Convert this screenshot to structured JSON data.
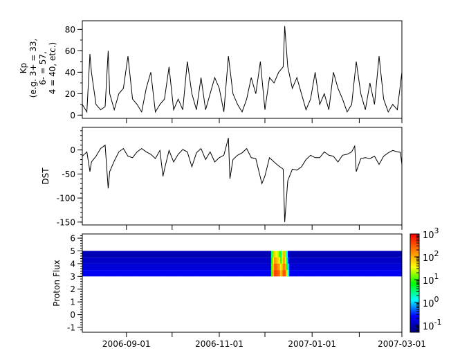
{
  "chart_data": [
    {
      "type": "line",
      "ylabel_lines": [
        "Kp",
        "(e.g. 3+ = 33,",
        "6- = 57,",
        "4 = 40, etc.)"
      ],
      "ylim": [
        -3,
        88
      ],
      "yticks": [
        0,
        20,
        40,
        60,
        80
      ],
      "xlim": [
        "2006-08-03",
        "2007-03-01"
      ],
      "color": "#000000",
      "series": [
        [
          "2006-08-03",
          10
        ],
        [
          "2006-08-06",
          3
        ],
        [
          "2006-08-08",
          57
        ],
        [
          "2006-08-09",
          40
        ],
        [
          "2006-08-12",
          10
        ],
        [
          "2006-08-15",
          5
        ],
        [
          "2006-08-18",
          8
        ],
        [
          "2006-08-20",
          60
        ],
        [
          "2006-08-21",
          20
        ],
        [
          "2006-08-24",
          5
        ],
        [
          "2006-08-27",
          20
        ],
        [
          "2006-08-30",
          25
        ],
        [
          "2006-09-02",
          55
        ],
        [
          "2006-09-05",
          15
        ],
        [
          "2006-09-08",
          10
        ],
        [
          "2006-09-11",
          3
        ],
        [
          "2006-09-14",
          25
        ],
        [
          "2006-09-17",
          40
        ],
        [
          "2006-09-20",
          3
        ],
        [
          "2006-09-23",
          10
        ],
        [
          "2006-09-26",
          15
        ],
        [
          "2006-09-29",
          45
        ],
        [
          "2006-10-02",
          5
        ],
        [
          "2006-10-05",
          15
        ],
        [
          "2006-10-08",
          5
        ],
        [
          "2006-10-11",
          50
        ],
        [
          "2006-10-14",
          20
        ],
        [
          "2006-10-17",
          5
        ],
        [
          "2006-10-20",
          35
        ],
        [
          "2006-10-23",
          5
        ],
        [
          "2006-10-26",
          20
        ],
        [
          "2006-10-29",
          35
        ],
        [
          "2006-11-01",
          25
        ],
        [
          "2006-11-04",
          3
        ],
        [
          "2006-11-07",
          55
        ],
        [
          "2006-11-10",
          20
        ],
        [
          "2006-11-13",
          10
        ],
        [
          "2006-11-16",
          3
        ],
        [
          "2006-11-19",
          15
        ],
        [
          "2006-11-22",
          35
        ],
        [
          "2006-11-25",
          20
        ],
        [
          "2006-11-28",
          50
        ],
        [
          "2006-12-01",
          5
        ],
        [
          "2006-12-04",
          35
        ],
        [
          "2006-12-07",
          30
        ],
        [
          "2006-12-10",
          40
        ],
        [
          "2006-12-13",
          45
        ],
        [
          "2006-12-14",
          83
        ],
        [
          "2006-12-16",
          45
        ],
        [
          "2006-12-19",
          25
        ],
        [
          "2006-12-22",
          35
        ],
        [
          "2006-12-25",
          20
        ],
        [
          "2006-12-28",
          5
        ],
        [
          "2006-12-31",
          15
        ],
        [
          "2007-01-03",
          40
        ],
        [
          "2007-01-06",
          10
        ],
        [
          "2007-01-09",
          20
        ],
        [
          "2007-01-12",
          5
        ],
        [
          "2007-01-15",
          40
        ],
        [
          "2007-01-18",
          25
        ],
        [
          "2007-01-21",
          15
        ],
        [
          "2007-01-24",
          3
        ],
        [
          "2007-01-27",
          10
        ],
        [
          "2007-01-30",
          50
        ],
        [
          "2007-02-02",
          20
        ],
        [
          "2007-02-05",
          5
        ],
        [
          "2007-02-08",
          30
        ],
        [
          "2007-02-11",
          10
        ],
        [
          "2007-02-14",
          55
        ],
        [
          "2007-02-17",
          15
        ],
        [
          "2007-02-20",
          3
        ],
        [
          "2007-02-23",
          10
        ],
        [
          "2007-02-26",
          5
        ],
        [
          "2007-03-01",
          40
        ]
      ]
    },
    {
      "type": "line",
      "ylabel": "DST",
      "ylim": [
        -156,
        47
      ],
      "yticks": [
        0,
        -50,
        -100,
        -150
      ],
      "xlim": [
        "2006-08-03",
        "2007-03-01"
      ],
      "color": "#000000",
      "series": [
        [
          "2006-08-03",
          -13
        ],
        [
          "2006-08-06",
          -4
        ],
        [
          "2006-08-08",
          -45
        ],
        [
          "2006-08-09",
          -25
        ],
        [
          "2006-08-12",
          -13
        ],
        [
          "2006-08-15",
          3
        ],
        [
          "2006-08-18",
          10
        ],
        [
          "2006-08-20",
          -80
        ],
        [
          "2006-08-21",
          -45
        ],
        [
          "2006-08-24",
          -23
        ],
        [
          "2006-08-27",
          -4
        ],
        [
          "2006-08-30",
          3
        ],
        [
          "2006-09-02",
          -13
        ],
        [
          "2006-09-05",
          -16
        ],
        [
          "2006-09-08",
          -4
        ],
        [
          "2006-09-11",
          3
        ],
        [
          "2006-09-14",
          -4
        ],
        [
          "2006-09-17",
          -9
        ],
        [
          "2006-09-20",
          -18
        ],
        [
          "2006-09-23",
          -1
        ],
        [
          "2006-09-25",
          -55
        ],
        [
          "2006-09-26",
          -40
        ],
        [
          "2006-09-29",
          -1
        ],
        [
          "2006-10-02",
          -25
        ],
        [
          "2006-10-05",
          -9
        ],
        [
          "2006-10-08",
          1
        ],
        [
          "2006-10-11",
          -4
        ],
        [
          "2006-10-14",
          -35
        ],
        [
          "2006-10-17",
          -6
        ],
        [
          "2006-10-20",
          3
        ],
        [
          "2006-10-23",
          -20
        ],
        [
          "2006-10-26",
          -4
        ],
        [
          "2006-10-29",
          -25
        ],
        [
          "2006-11-01",
          -16
        ],
        [
          "2006-11-04",
          -11
        ],
        [
          "2006-11-07",
          25
        ],
        [
          "2006-11-08",
          -60
        ],
        [
          "2006-11-10",
          -20
        ],
        [
          "2006-11-13",
          -11
        ],
        [
          "2006-11-16",
          -6
        ],
        [
          "2006-11-19",
          3
        ],
        [
          "2006-11-22",
          -16
        ],
        [
          "2006-11-25",
          -18
        ],
        [
          "2006-11-29",
          -70
        ],
        [
          "2006-12-01",
          -54
        ],
        [
          "2006-12-04",
          -16
        ],
        [
          "2006-12-07",
          -25
        ],
        [
          "2006-12-10",
          -33
        ],
        [
          "2006-12-13",
          -40
        ],
        [
          "2006-12-14",
          -150
        ],
        [
          "2006-12-16",
          -64
        ],
        [
          "2006-12-19",
          -40
        ],
        [
          "2006-12-22",
          -42
        ],
        [
          "2006-12-25",
          -35
        ],
        [
          "2006-12-28",
          -20
        ],
        [
          "2006-12-31",
          -11
        ],
        [
          "2007-01-03",
          -16
        ],
        [
          "2007-01-06",
          -16
        ],
        [
          "2007-01-09",
          -4
        ],
        [
          "2007-01-12",
          -11
        ],
        [
          "2007-01-15",
          -13
        ],
        [
          "2007-01-18",
          -25
        ],
        [
          "2007-01-21",
          -11
        ],
        [
          "2007-01-24",
          -9
        ],
        [
          "2007-01-27",
          -4
        ],
        [
          "2007-01-29",
          8
        ],
        [
          "2007-01-30",
          -45
        ],
        [
          "2007-02-02",
          -18
        ],
        [
          "2007-02-05",
          -16
        ],
        [
          "2007-02-08",
          -18
        ],
        [
          "2007-02-11",
          -13
        ],
        [
          "2007-02-14",
          -30
        ],
        [
          "2007-02-17",
          -13
        ],
        [
          "2007-02-20",
          -6
        ],
        [
          "2007-02-23",
          -1
        ],
        [
          "2007-02-26",
          -4
        ],
        [
          "2007-02-28",
          -5
        ],
        [
          "2007-03-01",
          -30
        ]
      ]
    },
    {
      "type": "heatmap",
      "ylabel": "Proton Flux",
      "ylim": [
        -1.38,
        6.33
      ],
      "yticks": [
        -1,
        0,
        1,
        2,
        3,
        4,
        5,
        6
      ],
      "xlim": [
        "2006-08-03",
        "2007-03-01"
      ],
      "xticks": [
        "2006-09-01",
        "2006-11-01",
        "2007-01-01",
        "2007-03-01"
      ],
      "xticks_minor": [
        "2006-10-01",
        "2006-12-01",
        "2007-02-01"
      ],
      "y_bins": [
        [
          3.0,
          3.5
        ],
        [
          3.5,
          4.0
        ],
        [
          4.0,
          4.5
        ],
        [
          4.5,
          5.0
        ]
      ],
      "background_log_flux": [
        -0.65,
        -0.8,
        -0.9,
        -1.0
      ],
      "columns": [
        {
          "date": "2006-12-05",
          "log_flux": [
            1.0,
            1.0,
            0.8,
            0.5
          ]
        },
        {
          "date": "2006-12-06",
          "log_flux": [
            2.0,
            1.8,
            1.5,
            1.2
          ]
        },
        {
          "date": "2006-12-07",
          "log_flux": [
            2.7,
            2.5,
            2.2,
            1.8
          ]
        },
        {
          "date": "2006-12-08",
          "log_flux": [
            2.6,
            2.4,
            2.0,
            1.6
          ]
        },
        {
          "date": "2006-12-09",
          "log_flux": [
            2.5,
            2.2,
            1.8,
            1.4
          ]
        },
        {
          "date": "2006-12-10",
          "log_flux": [
            2.3,
            2.0,
            1.5,
            1.0
          ]
        },
        {
          "date": "2006-12-11",
          "log_flux": [
            1.8,
            1.5,
            1.0,
            0.5
          ]
        },
        {
          "date": "2006-12-12",
          "log_flux": [
            2.3,
            2.0,
            1.6,
            1.5
          ]
        },
        {
          "date": "2006-12-13",
          "log_flux": [
            2.6,
            2.4,
            2.2,
            2.0
          ]
        },
        {
          "date": "2006-12-14",
          "log_flux": [
            2.4,
            2.0,
            1.6,
            1.3
          ]
        },
        {
          "date": "2006-12-15",
          "log_flux": [
            1.5,
            1.0,
            0.5,
            0.2
          ]
        },
        {
          "date": "2006-12-16",
          "log_flux": [
            0.3,
            0.0,
            -0.4,
            -0.6
          ]
        }
      ],
      "colorbar": {
        "scale": "log",
        "range_log10": [
          -1.3,
          3.0
        ],
        "tick_exponents": [
          "-1",
          "0",
          "1",
          "2",
          "3"
        ],
        "tick_base": "10",
        "colormap": [
          "#00007f",
          "#0000ff",
          "#00ffff",
          "#00ff00",
          "#ffff00",
          "#ff7f00",
          "#ff0000"
        ]
      }
    }
  ]
}
